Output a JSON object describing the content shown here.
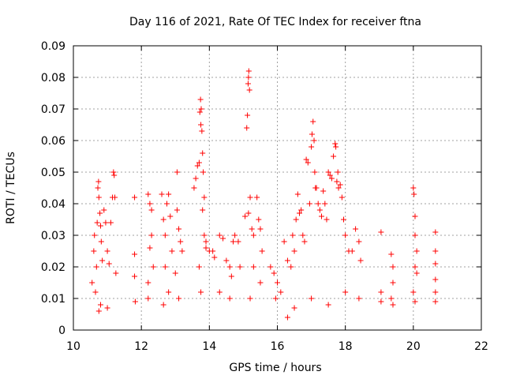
{
  "chart_data": {
    "type": "scatter",
    "title": "Day 116 of 2021, Rate Of TEC Index for receiver ftna",
    "xlabel": "GPS time / hours",
    "ylabel": "ROTI / TECUs",
    "xlim": [
      10,
      22
    ],
    "ylim": [
      0,
      0.09
    ],
    "x_ticks": [
      "10",
      "12",
      "14",
      "16",
      "18",
      "20",
      "22"
    ],
    "y_ticks": [
      "0",
      "0.01",
      "0.02",
      "0.03",
      "0.04",
      "0.05",
      "0.06",
      "0.07",
      "0.08",
      "0.09"
    ],
    "grid": true,
    "marker": "+",
    "marker_color": "#ff0000",
    "series": [
      {
        "points": [
          [
            10.55,
            0.015
          ],
          [
            10.6,
            0.025
          ],
          [
            10.62,
            0.03
          ],
          [
            10.65,
            0.012
          ],
          [
            10.68,
            0.02
          ],
          [
            10.7,
            0.034
          ],
          [
            10.72,
            0.045
          ],
          [
            10.74,
            0.047
          ],
          [
            10.75,
            0.042
          ],
          [
            10.78,
            0.037
          ],
          [
            10.8,
            0.033
          ],
          [
            10.82,
            0.028
          ],
          [
            10.85,
            0.022
          ],
          [
            10.9,
            0.038
          ],
          [
            10.95,
            0.034
          ],
          [
            11.0,
            0.025
          ],
          [
            11.05,
            0.021
          ],
          [
            11.1,
            0.034
          ],
          [
            11.15,
            0.042
          ],
          [
            11.18,
            0.05
          ],
          [
            11.2,
            0.049
          ],
          [
            11.22,
            0.042
          ],
          [
            11.25,
            0.018
          ],
          [
            10.75,
            0.006
          ],
          [
            10.8,
            0.008
          ],
          [
            11.0,
            0.007
          ],
          [
            11.8,
            0.042
          ],
          [
            11.8,
            0.024
          ],
          [
            11.8,
            0.017
          ],
          [
            11.82,
            0.009
          ],
          [
            12.2,
            0.043
          ],
          [
            12.25,
            0.04
          ],
          [
            12.3,
            0.038
          ],
          [
            12.3,
            0.03
          ],
          [
            12.25,
            0.026
          ],
          [
            12.2,
            0.015
          ],
          [
            12.35,
            0.02
          ],
          [
            12.2,
            0.01
          ],
          [
            12.6,
            0.043
          ],
          [
            12.65,
            0.035
          ],
          [
            12.7,
            0.03
          ],
          [
            12.75,
            0.04
          ],
          [
            12.8,
            0.043
          ],
          [
            12.85,
            0.036
          ],
          [
            12.9,
            0.025
          ],
          [
            12.7,
            0.02
          ],
          [
            12.8,
            0.012
          ],
          [
            12.65,
            0.008
          ],
          [
            13.05,
            0.05
          ],
          [
            13.05,
            0.038
          ],
          [
            13.1,
            0.032
          ],
          [
            13.15,
            0.028
          ],
          [
            13.2,
            0.025
          ],
          [
            13.0,
            0.018
          ],
          [
            13.1,
            0.01
          ],
          [
            13.55,
            0.045
          ],
          [
            13.6,
            0.048
          ],
          [
            13.65,
            0.052
          ],
          [
            13.7,
            0.053
          ],
          [
            13.72,
            0.069
          ],
          [
            13.74,
            0.073
          ],
          [
            13.76,
            0.07
          ],
          [
            13.75,
            0.065
          ],
          [
            13.78,
            0.063
          ],
          [
            13.8,
            0.056
          ],
          [
            13.82,
            0.05
          ],
          [
            13.85,
            0.042
          ],
          [
            13.8,
            0.038
          ],
          [
            13.85,
            0.03
          ],
          [
            13.9,
            0.028
          ],
          [
            13.7,
            0.02
          ],
          [
            13.75,
            0.012
          ],
          [
            13.9,
            0.026
          ],
          [
            14.0,
            0.025
          ],
          [
            14.1,
            0.025
          ],
          [
            14.15,
            0.023
          ],
          [
            14.3,
            0.03
          ],
          [
            14.4,
            0.029
          ],
          [
            14.5,
            0.022
          ],
          [
            14.6,
            0.02
          ],
          [
            14.65,
            0.017
          ],
          [
            14.7,
            0.028
          ],
          [
            14.75,
            0.03
          ],
          [
            14.85,
            0.028
          ],
          [
            14.9,
            0.02
          ],
          [
            14.3,
            0.012
          ],
          [
            14.6,
            0.01
          ],
          [
            15.05,
            0.036
          ],
          [
            15.1,
            0.064
          ],
          [
            15.12,
            0.068
          ],
          [
            15.14,
            0.078
          ],
          [
            15.15,
            0.08
          ],
          [
            15.16,
            0.082
          ],
          [
            15.18,
            0.076
          ],
          [
            15.2,
            0.042
          ],
          [
            15.15,
            0.037
          ],
          [
            15.25,
            0.032
          ],
          [
            15.3,
            0.03
          ],
          [
            15.4,
            0.042
          ],
          [
            15.45,
            0.035
          ],
          [
            15.5,
            0.032
          ],
          [
            15.55,
            0.025
          ],
          [
            15.3,
            0.02
          ],
          [
            15.5,
            0.015
          ],
          [
            15.2,
            0.01
          ],
          [
            15.8,
            0.02
          ],
          [
            15.9,
            0.018
          ],
          [
            16.0,
            0.015
          ],
          [
            16.1,
            0.012
          ],
          [
            15.95,
            0.01
          ],
          [
            16.2,
            0.028
          ],
          [
            16.3,
            0.022
          ],
          [
            16.4,
            0.02
          ],
          [
            16.45,
            0.03
          ],
          [
            16.5,
            0.025
          ],
          [
            16.55,
            0.035
          ],
          [
            16.6,
            0.043
          ],
          [
            16.65,
            0.037
          ],
          [
            16.7,
            0.038
          ],
          [
            16.75,
            0.03
          ],
          [
            16.8,
            0.028
          ],
          [
            16.85,
            0.054
          ],
          [
            16.9,
            0.053
          ],
          [
            16.95,
            0.04
          ],
          [
            17.0,
            0.058
          ],
          [
            17.02,
            0.062
          ],
          [
            17.05,
            0.066
          ],
          [
            17.08,
            0.06
          ],
          [
            17.1,
            0.05
          ],
          [
            17.12,
            0.045
          ],
          [
            17.15,
            0.045
          ],
          [
            17.2,
            0.04
          ],
          [
            17.25,
            0.038
          ],
          [
            17.3,
            0.036
          ],
          [
            17.35,
            0.044
          ],
          [
            17.4,
            0.04
          ],
          [
            17.45,
            0.035
          ],
          [
            17.5,
            0.05
          ],
          [
            17.55,
            0.049
          ],
          [
            17.6,
            0.048
          ],
          [
            17.65,
            0.055
          ],
          [
            17.7,
            0.059
          ],
          [
            17.72,
            0.058
          ],
          [
            17.75,
            0.047
          ],
          [
            17.78,
            0.05
          ],
          [
            17.8,
            0.045
          ],
          [
            17.85,
            0.046
          ],
          [
            17.9,
            0.042
          ],
          [
            17.95,
            0.035
          ],
          [
            18.0,
            0.03
          ],
          [
            18.1,
            0.025
          ],
          [
            18.2,
            0.025
          ],
          [
            18.3,
            0.032
          ],
          [
            18.4,
            0.028
          ],
          [
            18.45,
            0.022
          ],
          [
            16.3,
            0.004
          ],
          [
            16.5,
            0.007
          ],
          [
            17.0,
            0.01
          ],
          [
            17.5,
            0.008
          ],
          [
            18.0,
            0.012
          ],
          [
            18.4,
            0.01
          ],
          [
            19.05,
            0.031
          ],
          [
            19.05,
            0.012
          ],
          [
            19.05,
            0.009
          ],
          [
            19.35,
            0.024
          ],
          [
            19.4,
            0.02
          ],
          [
            19.4,
            0.015
          ],
          [
            19.35,
            0.01
          ],
          [
            19.4,
            0.008
          ],
          [
            20.0,
            0.045
          ],
          [
            20.02,
            0.043
          ],
          [
            20.05,
            0.036
          ],
          [
            20.05,
            0.03
          ],
          [
            20.1,
            0.025
          ],
          [
            20.05,
            0.02
          ],
          [
            20.1,
            0.018
          ],
          [
            20.0,
            0.012
          ],
          [
            20.05,
            0.009
          ],
          [
            20.65,
            0.031
          ],
          [
            20.65,
            0.025
          ],
          [
            20.65,
            0.021
          ],
          [
            20.65,
            0.016
          ],
          [
            20.65,
            0.012
          ],
          [
            20.65,
            0.009
          ]
        ]
      }
    ]
  }
}
